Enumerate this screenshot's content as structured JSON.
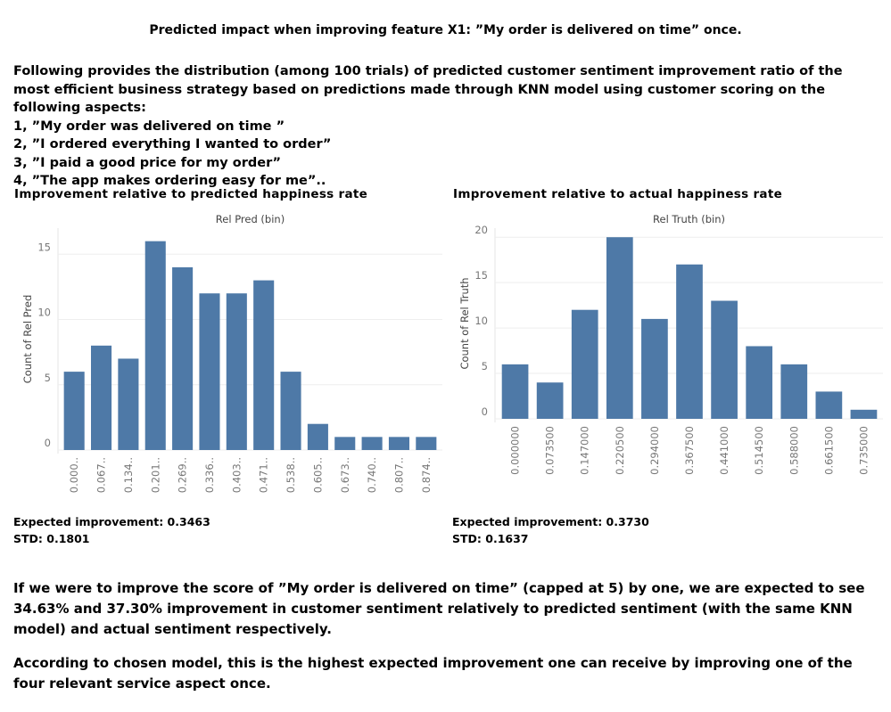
{
  "title": "Predicted impact when improving feature X1: ”My order is delivered on time” once.",
  "intro": [
    "Following provides the distribution (among 100 trials) of predicted customer sentiment improvement ratio of the most efficient business strategy based on predictions made through KNN model using customer scoring on the following aspects:",
    "1, ”My order was delivered on time ”",
    "2, ”I ordered everything I wanted to order”",
    "3, ”I paid a good price for my order”",
    "4, ”The app makes ordering easy for me”.."
  ],
  "chart_data": [
    {
      "type": "bar",
      "title": "Improvement relative to predicted happiness rate",
      "xlabel": "Rel Pred (bin)",
      "ylabel": "Count of Rel Pred",
      "categories": [
        "0.000..",
        "0.067..",
        "0.134..",
        "0.201..",
        "0.269..",
        "0.336..",
        "0.403..",
        "0.471..",
        "0.538..",
        "0.605..",
        "0.673..",
        "0.740..",
        "0.807..",
        "0.874.."
      ],
      "values": [
        6,
        8,
        7,
        16,
        14,
        12,
        12,
        13,
        6,
        2,
        1,
        1,
        1,
        1
      ],
      "color": "#4e79a7",
      "ylim": [
        0,
        17
      ],
      "yticks": [
        0,
        5,
        10,
        15
      ],
      "grid": true,
      "summary": [
        "Expected improvement: 0.3463",
        "STD: 0.1801"
      ]
    },
    {
      "type": "bar",
      "title": "Improvement relative to actual happiness rate",
      "xlabel": "Rel Truth (bin)",
      "ylabel": "Count of Rel Truth",
      "categories": [
        "0.000000",
        "0.073500",
        "0.147000",
        "0.220500",
        "0.294000",
        "0.367500",
        "0.441000",
        "0.514500",
        "0.588000",
        "0.661500",
        "0.735000"
      ],
      "values": [
        6,
        4,
        12,
        20,
        11,
        17,
        13,
        8,
        6,
        3,
        1
      ],
      "color": "#4e79a7",
      "ylim": [
        0,
        21
      ],
      "yticks": [
        0,
        5,
        10,
        15,
        20
      ],
      "grid": true,
      "summary": [
        "Expected improvement: 0.3730",
        "STD: 0.1637"
      ]
    }
  ],
  "conclusion": [
    "If we were to improve the score of ”My order is delivered on time” (capped at 5) by one, we are expected to see 34.63% and 37.30% improvement in customer sentiment relatively to predicted sentiment (with the same KNN model) and actual sentiment respectively.",
    "According to chosen model, this is the highest expected improvement one can receive by improving one of the four relevant service aspect once."
  ]
}
